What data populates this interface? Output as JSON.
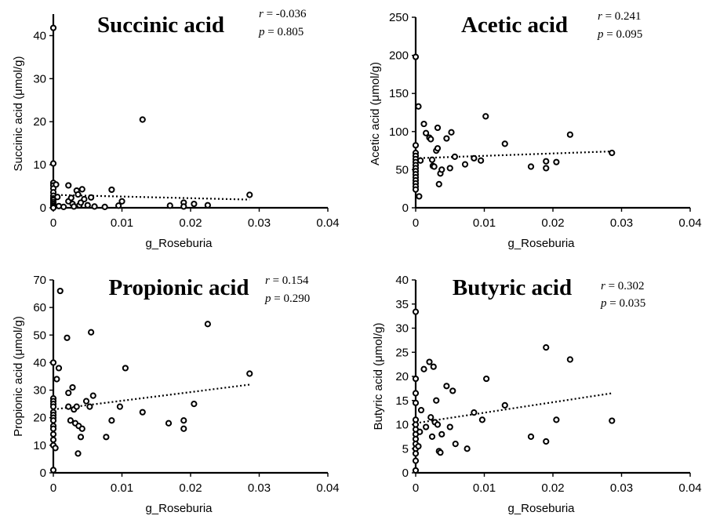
{
  "chart_data": [
    {
      "type": "scatter",
      "title": "Succinic acid",
      "r_label": "r = -0.036",
      "p_label": "p = 0.805",
      "xlabel": "g_Roseburia",
      "ylabel": "Succinic acid (μmol/g)",
      "xlim": [
        0,
        0.04
      ],
      "ylim": [
        0,
        45
      ],
      "xticks": [
        0,
        0.01,
        0.02,
        0.03,
        0.04
      ],
      "xtick_labels": [
        "0",
        "0.01",
        "0.02",
        "0.03",
        "0.04"
      ],
      "yticks": [
        0,
        10,
        20,
        30,
        40
      ],
      "ytick_labels": [
        "0",
        "10",
        "20",
        "30",
        "40"
      ],
      "trend": [
        [
          0,
          3.0
        ],
        [
          0.0286,
          1.9
        ]
      ],
      "points": [
        [
          0,
          41.8
        ],
        [
          0,
          10.3
        ],
        [
          0,
          5.8
        ],
        [
          0,
          5.2
        ],
        [
          0,
          4.5
        ],
        [
          0,
          3.6
        ],
        [
          0,
          2.8
        ],
        [
          0,
          2.2
        ],
        [
          0,
          1.8
        ],
        [
          0,
          1.3
        ],
        [
          0,
          0.9
        ],
        [
          0,
          0.5
        ],
        [
          0,
          0.2
        ],
        [
          0,
          0.0
        ],
        [
          0.0004,
          5.4
        ],
        [
          0.0006,
          2.5
        ],
        [
          0.0008,
          0.4
        ],
        [
          0.0015,
          0.2
        ],
        [
          0.0022,
          5.2
        ],
        [
          0.0022,
          1.5
        ],
        [
          0.0026,
          2.3
        ],
        [
          0.0028,
          0.9
        ],
        [
          0.003,
          0.3
        ],
        [
          0.0034,
          4.0
        ],
        [
          0.0036,
          3.1
        ],
        [
          0.0038,
          0.6
        ],
        [
          0.004,
          1.2
        ],
        [
          0.0042,
          4.3
        ],
        [
          0.0045,
          2.0
        ],
        [
          0.005,
          0.6
        ],
        [
          0.0055,
          2.4
        ],
        [
          0.006,
          0.3
        ],
        [
          0.0075,
          0.2
        ],
        [
          0.0085,
          4.2
        ],
        [
          0.0095,
          0.5
        ],
        [
          0.01,
          1.5
        ],
        [
          0.013,
          20.5
        ],
        [
          0.017,
          0.5
        ],
        [
          0.019,
          1.2
        ],
        [
          0.019,
          0.3
        ],
        [
          0.0205,
          0.9
        ],
        [
          0.0225,
          0.6
        ],
        [
          0.0286,
          3.0
        ]
      ]
    },
    {
      "type": "scatter",
      "title": "Acetic acid",
      "r_label": "r = 0.241",
      "p_label": "p = 0.095",
      "xlabel": "g_Roseburia",
      "ylabel": "Acetic acid (μmol/g)",
      "xlim": [
        0,
        0.04
      ],
      "ylim": [
        0,
        250
      ],
      "xticks": [
        0,
        0.01,
        0.02,
        0.03,
        0.04
      ],
      "xtick_labels": [
        "0",
        "0.01",
        "0.02",
        "0.03",
        "0.04"
      ],
      "yticks": [
        0,
        50,
        100,
        150,
        200,
        250
      ],
      "ytick_labels": [
        "0",
        "50",
        "100",
        "150",
        "200",
        "250"
      ],
      "trend": [
        [
          0,
          65
        ],
        [
          0.0286,
          74
        ]
      ],
      "points": [
        [
          0,
          198
        ],
        [
          0,
          82
        ],
        [
          0,
          72
        ],
        [
          0,
          68
        ],
        [
          0,
          64
        ],
        [
          0,
          60
        ],
        [
          0,
          56
        ],
        [
          0,
          52
        ],
        [
          0,
          48
        ],
        [
          0,
          44
        ],
        [
          0,
          40
        ],
        [
          0,
          36
        ],
        [
          0,
          32
        ],
        [
          0,
          28
        ],
        [
          0,
          24
        ],
        [
          0.0004,
          133
        ],
        [
          0.0005,
          15
        ],
        [
          0.0007,
          62
        ],
        [
          0.0012,
          110
        ],
        [
          0.0015,
          98
        ],
        [
          0.002,
          92
        ],
        [
          0.0022,
          90
        ],
        [
          0.0024,
          63
        ],
        [
          0.0025,
          55
        ],
        [
          0.0027,
          54
        ],
        [
          0.003,
          75
        ],
        [
          0.0032,
          78
        ],
        [
          0.0032,
          105
        ],
        [
          0.0034,
          31
        ],
        [
          0.0036,
          45
        ],
        [
          0.0038,
          50
        ],
        [
          0.0045,
          91
        ],
        [
          0.005,
          52
        ],
        [
          0.0052,
          99
        ],
        [
          0.0057,
          67
        ],
        [
          0.0072,
          57
        ],
        [
          0.0085,
          65
        ],
        [
          0.0095,
          62
        ],
        [
          0.0102,
          120
        ],
        [
          0.013,
          84
        ],
        [
          0.0168,
          54
        ],
        [
          0.019,
          52
        ],
        [
          0.019,
          61
        ],
        [
          0.0205,
          60
        ],
        [
          0.0225,
          96
        ],
        [
          0.0286,
          72
        ]
      ]
    },
    {
      "type": "scatter",
      "title": "Propionic acid",
      "r_label": "r = 0.154",
      "p_label": "p = 0.290",
      "xlabel": "g_Roseburia",
      "ylabel": "Propionic acid (μmol/g)",
      "xlim": [
        0,
        0.04
      ],
      "ylim": [
        0,
        70
      ],
      "xticks": [
        0,
        0.01,
        0.02,
        0.03,
        0.04
      ],
      "xtick_labels": [
        "0",
        "0.01",
        "0.02",
        "0.03",
        "0.04"
      ],
      "yticks": [
        0,
        10,
        20,
        30,
        40,
        50,
        60,
        70
      ],
      "ytick_labels": [
        "0",
        "10",
        "20",
        "30",
        "40",
        "50",
        "60",
        "70"
      ],
      "trend": [
        [
          0,
          23
        ],
        [
          0.0286,
          32
        ]
      ],
      "points": [
        [
          0,
          40
        ],
        [
          0,
          27
        ],
        [
          0,
          26
        ],
        [
          0,
          25
        ],
        [
          0,
          24
        ],
        [
          0,
          22
        ],
        [
          0,
          21
        ],
        [
          0,
          20
        ],
        [
          0,
          19
        ],
        [
          0,
          17
        ],
        [
          0,
          16
        ],
        [
          0,
          14
        ],
        [
          0,
          12
        ],
        [
          0,
          10
        ],
        [
          0,
          1
        ],
        [
          0.0003,
          9
        ],
        [
          0.0005,
          34
        ],
        [
          0.0008,
          38
        ],
        [
          0.001,
          66
        ],
        [
          0.002,
          49
        ],
        [
          0.0022,
          29
        ],
        [
          0.0022,
          24
        ],
        [
          0.0025,
          19
        ],
        [
          0.0028,
          31
        ],
        [
          0.003,
          23
        ],
        [
          0.0032,
          18
        ],
        [
          0.0034,
          24
        ],
        [
          0.0036,
          7
        ],
        [
          0.0037,
          17
        ],
        [
          0.004,
          13
        ],
        [
          0.0042,
          16
        ],
        [
          0.0048,
          26
        ],
        [
          0.0053,
          24
        ],
        [
          0.0055,
          51
        ],
        [
          0.0058,
          28
        ],
        [
          0.0077,
          13
        ],
        [
          0.0085,
          19
        ],
        [
          0.0097,
          24
        ],
        [
          0.0105,
          38
        ],
        [
          0.013,
          22
        ],
        [
          0.0168,
          18
        ],
        [
          0.019,
          16
        ],
        [
          0.019,
          19
        ],
        [
          0.0205,
          25
        ],
        [
          0.0225,
          54
        ],
        [
          0.0286,
          36
        ]
      ]
    },
    {
      "type": "scatter",
      "title": "Butyric acid",
      "r_label": "r = 0.302",
      "p_label": "p = 0.035",
      "xlabel": "g_Roseburia",
      "ylabel": "Butyric acid (μmol/g)",
      "xlim": [
        0,
        0.04
      ],
      "ylim": [
        0,
        40
      ],
      "xticks": [
        0,
        0.01,
        0.02,
        0.03,
        0.04
      ],
      "xtick_labels": [
        "0",
        "0.01",
        "0.02",
        "0.03",
        "0.04"
      ],
      "yticks": [
        0,
        5,
        10,
        15,
        20,
        25,
        30,
        35,
        40
      ],
      "ytick_labels": [
        "0",
        "5",
        "10",
        "15",
        "20",
        "25",
        "30",
        "35",
        "40"
      ],
      "trend": [
        [
          0,
          10.3
        ],
        [
          0.0286,
          16.5
        ]
      ],
      "points": [
        [
          0,
          33.4
        ],
        [
          0,
          19.5
        ],
        [
          0,
          16.5
        ],
        [
          0,
          14.5
        ],
        [
          0,
          11
        ],
        [
          0,
          10
        ],
        [
          0,
          9
        ],
        [
          0,
          8
        ],
        [
          0,
          7
        ],
        [
          0,
          6
        ],
        [
          0,
          5
        ],
        [
          0,
          4
        ],
        [
          0,
          2.5
        ],
        [
          0,
          0.5
        ],
        [
          0.0004,
          5.5
        ],
        [
          0.0006,
          8.5
        ],
        [
          0.0008,
          13
        ],
        [
          0.0012,
          21.5
        ],
        [
          0.0015,
          9.5
        ],
        [
          0.002,
          23
        ],
        [
          0.0022,
          11.5
        ],
        [
          0.0024,
          7.5
        ],
        [
          0.0026,
          22
        ],
        [
          0.0028,
          10.5
        ],
        [
          0.003,
          15
        ],
        [
          0.0032,
          10
        ],
        [
          0.0034,
          4.5
        ],
        [
          0.0036,
          4.2
        ],
        [
          0.0038,
          8
        ],
        [
          0.0045,
          18
        ],
        [
          0.005,
          9.5
        ],
        [
          0.0054,
          17
        ],
        [
          0.0058,
          6
        ],
        [
          0.0075,
          5
        ],
        [
          0.0085,
          12.5
        ],
        [
          0.0097,
          11
        ],
        [
          0.0103,
          19.5
        ],
        [
          0.013,
          14
        ],
        [
          0.0168,
          7.5
        ],
        [
          0.019,
          26
        ],
        [
          0.019,
          6.5
        ],
        [
          0.0205,
          11
        ],
        [
          0.0225,
          23.5
        ],
        [
          0.0286,
          10.8
        ]
      ]
    }
  ]
}
